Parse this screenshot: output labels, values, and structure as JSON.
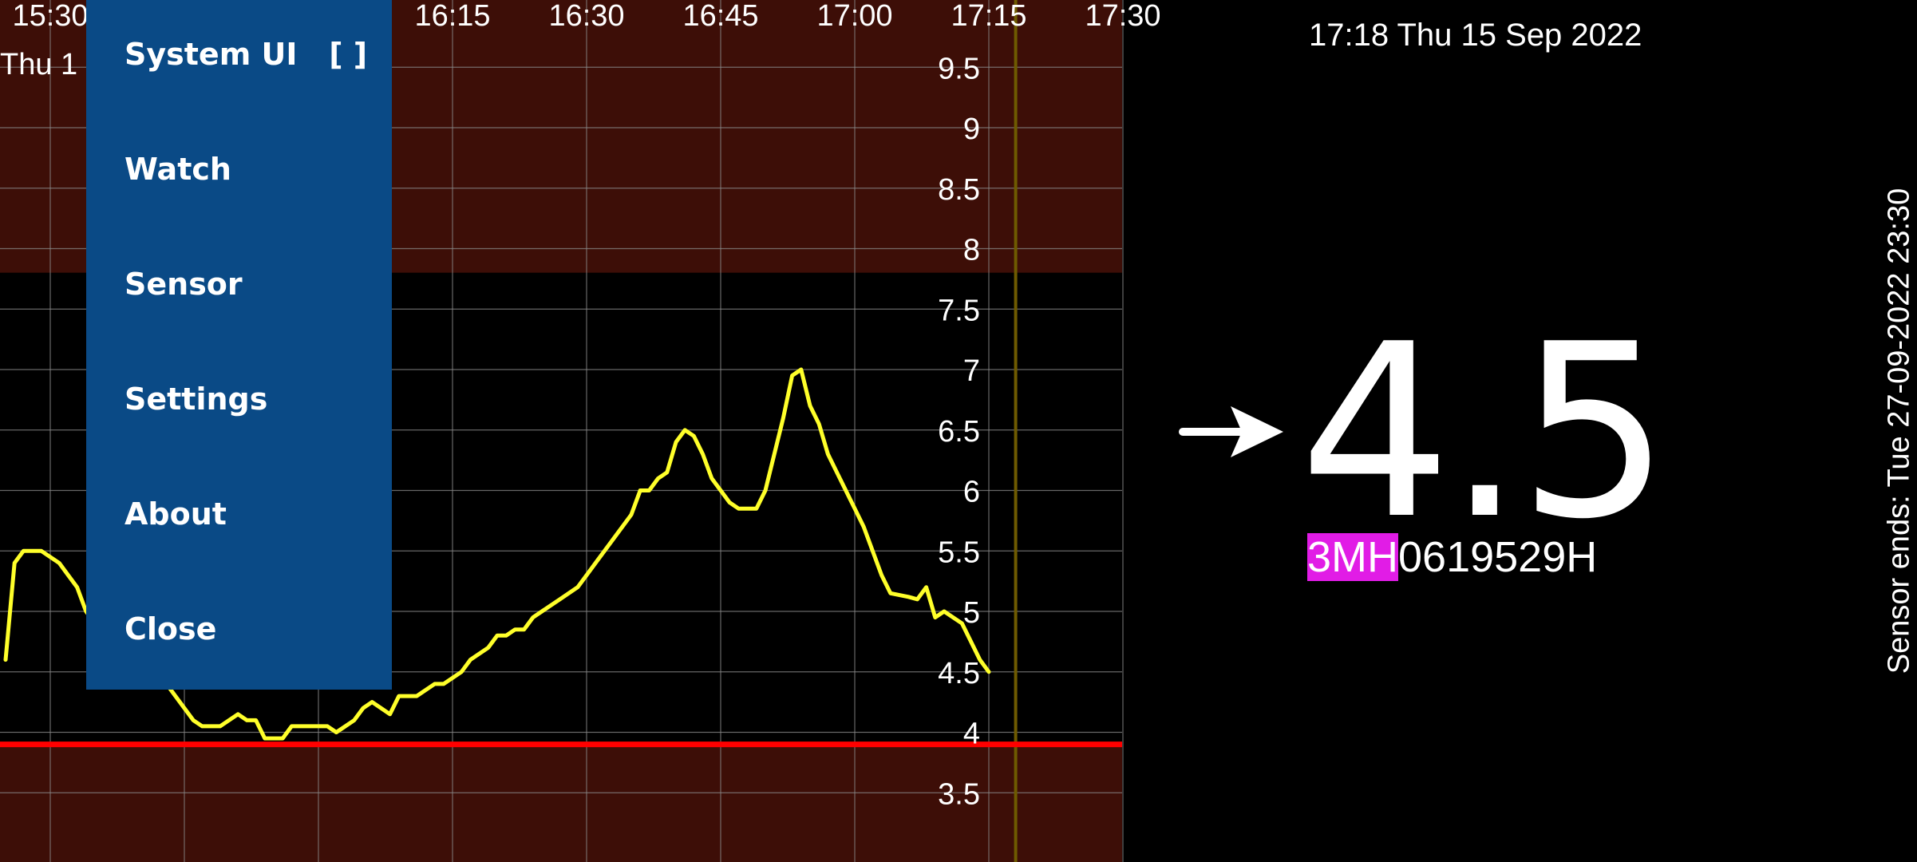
{
  "chart_data": {
    "type": "line",
    "x_ticks": [
      "15:30",
      "16:15",
      "16:30",
      "16:45",
      "17:00",
      "17:15",
      "17:30"
    ],
    "y_ticks": [
      "9.5",
      "9",
      "8.5",
      "8",
      "7.5",
      "7",
      "6.5",
      "6",
      "5.5",
      "5",
      "4.5",
      "4",
      "3.5"
    ],
    "date_label": "Thu 1",
    "ylim": [
      3.0,
      10.0
    ],
    "target_range": [
      3.9,
      7.8
    ],
    "low_threshold": 3.9,
    "current_time": "17:18",
    "series": [
      {
        "color": "#ffff2a",
        "points": [
          [
            "15:25",
            4.6
          ],
          [
            "15:26",
            5.4
          ],
          [
            "15:27",
            5.5
          ],
          [
            "15:29",
            5.5
          ],
          [
            "15:31",
            5.4
          ],
          [
            "15:32",
            5.3
          ],
          [
            "15:33",
            5.2
          ],
          [
            "15:34",
            5.0
          ],
          [
            "15:35",
            4.9
          ],
          [
            "15:43",
            4.4
          ],
          [
            "15:44",
            4.3
          ],
          [
            "15:45",
            4.2
          ],
          [
            "15:46",
            4.1
          ],
          [
            "15:47",
            4.05
          ],
          [
            "15:49",
            4.05
          ],
          [
            "15:51",
            4.15
          ],
          [
            "15:52",
            4.1
          ],
          [
            "15:53",
            4.1
          ],
          [
            "15:54",
            3.95
          ],
          [
            "15:56",
            3.95
          ],
          [
            "15:57",
            4.05
          ],
          [
            "15:59",
            4.05
          ],
          [
            "16:01",
            4.05
          ],
          [
            "16:02",
            4.0
          ],
          [
            "16:04",
            4.1
          ],
          [
            "16:05",
            4.2
          ],
          [
            "16:06",
            4.25
          ],
          [
            "16:08",
            4.15
          ],
          [
            "16:09",
            4.3
          ],
          [
            "16:11",
            4.3
          ],
          [
            "16:13",
            4.4
          ],
          [
            "16:14",
            4.4
          ],
          [
            "16:16",
            4.5
          ],
          [
            "16:17",
            4.6
          ],
          [
            "16:19",
            4.7
          ],
          [
            "16:20",
            4.8
          ],
          [
            "16:21",
            4.8
          ],
          [
            "16:22",
            4.85
          ],
          [
            "16:23",
            4.85
          ],
          [
            "16:24",
            4.95
          ],
          [
            "16:25",
            5.0
          ],
          [
            "16:27",
            5.1
          ],
          [
            "16:29",
            5.2
          ],
          [
            "16:30",
            5.3
          ],
          [
            "16:31",
            5.4
          ],
          [
            "16:33",
            5.6
          ],
          [
            "16:34",
            5.7
          ],
          [
            "16:35",
            5.8
          ],
          [
            "16:36",
            6.0
          ],
          [
            "16:37",
            6.0
          ],
          [
            "16:38",
            6.1
          ],
          [
            "16:39",
            6.15
          ],
          [
            "16:40",
            6.4
          ],
          [
            "16:41",
            6.5
          ],
          [
            "16:42",
            6.45
          ],
          [
            "16:43",
            6.3
          ],
          [
            "16:44",
            6.1
          ],
          [
            "16:46",
            5.9
          ],
          [
            "16:47",
            5.85
          ],
          [
            "16:49",
            5.85
          ],
          [
            "16:50",
            6.0
          ],
          [
            "16:51",
            6.3
          ],
          [
            "16:52",
            6.6
          ],
          [
            "16:53",
            6.95
          ],
          [
            "16:54",
            7.0
          ],
          [
            "16:55",
            6.7
          ],
          [
            "16:56",
            6.55
          ],
          [
            "16:57",
            6.3
          ],
          [
            "16:58",
            6.15
          ],
          [
            "16:59",
            6.0
          ],
          [
            "17:00",
            5.85
          ],
          [
            "17:01",
            5.7
          ],
          [
            "17:02",
            5.5
          ],
          [
            "17:03",
            5.3
          ],
          [
            "17:04",
            5.15
          ],
          [
            "17:06",
            5.12
          ],
          [
            "17:07",
            5.1
          ],
          [
            "17:08",
            5.2
          ],
          [
            "17:09",
            4.95
          ],
          [
            "17:10",
            5.0
          ],
          [
            "17:11",
            4.95
          ],
          [
            "17:12",
            4.9
          ],
          [
            "17:13",
            4.75
          ],
          [
            "17:14",
            4.6
          ],
          [
            "17:15",
            4.5
          ]
        ]
      }
    ]
  },
  "menu": {
    "items": [
      "System UI   [ ]",
      "Watch",
      "Sensor",
      "Settings",
      "About",
      "Close"
    ]
  },
  "status": {
    "datetime": "17:18 Thu 15 Sep 2022",
    "glucose": "4.5",
    "trend_icon": "arrow-right-icon",
    "serial_highlight": "3MH",
    "serial_rest": "0619529H",
    "sensor_ends": "Sensor ends: Tue 27-09-2022 23:30"
  },
  "colors": {
    "range_out": "#3d0e07",
    "range_in": "#000000",
    "line": "#ffff2a",
    "low_line": "#ff0000",
    "now_line": "#6e5a00",
    "menu_bg": "#0a4a86",
    "serial_highlight_bg": "#e11ce6"
  }
}
